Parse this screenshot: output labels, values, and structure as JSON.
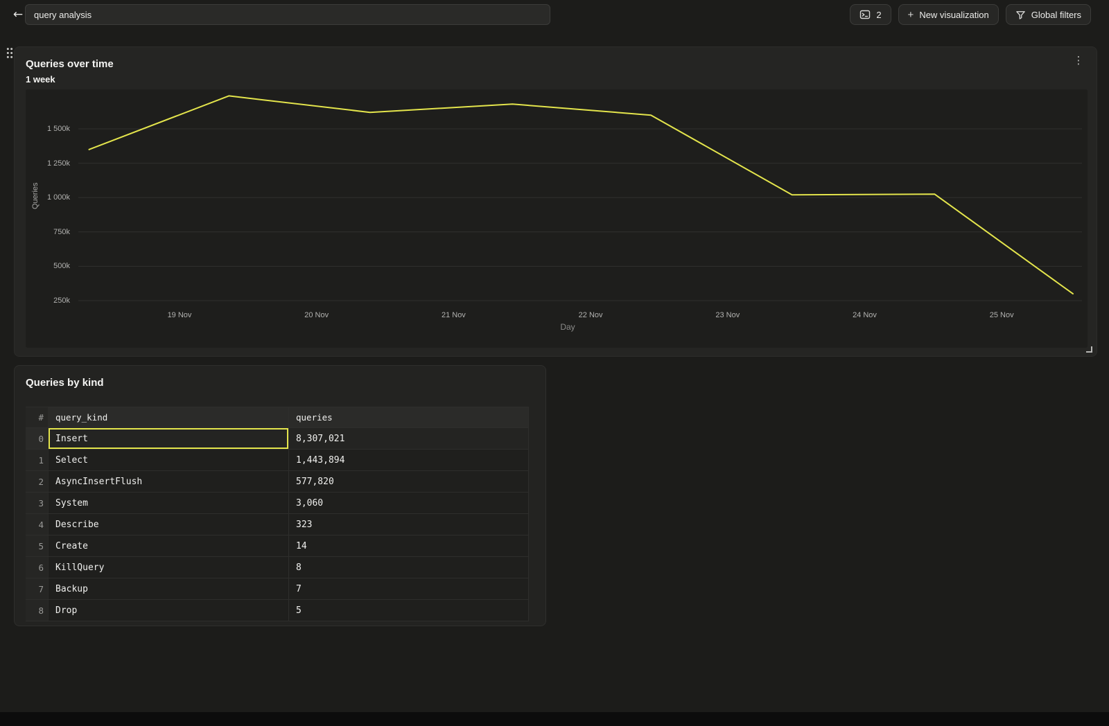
{
  "topbar": {
    "title_value": "query analysis",
    "tab_count_button": {
      "label": "2"
    },
    "new_visualization_button": {
      "plus": "+",
      "label": "New visualization"
    },
    "global_filters_button": {
      "label": "Global filters"
    }
  },
  "chart_panel": {
    "title": "Queries over time",
    "subtitle": "1 week"
  },
  "chart_data": {
    "type": "line",
    "title": "Queries over time",
    "subtitle": "1 week",
    "xlabel": "Day",
    "ylabel": "Queries",
    "legend": "none",
    "grid": "horizontal",
    "x_ticks": [
      {
        "day": 19,
        "label": "19 Nov"
      },
      {
        "day": 20,
        "label": "20 Nov"
      },
      {
        "day": 21,
        "label": "21 Nov"
      },
      {
        "day": 22,
        "label": "22 Nov"
      },
      {
        "day": 23,
        "label": "23 Nov"
      },
      {
        "day": 24,
        "label": "24 Nov"
      },
      {
        "day": 25,
        "label": "25 Nov"
      }
    ],
    "y_ticks": [
      {
        "value_k": 1500,
        "label": "1 500k"
      },
      {
        "value_k": 1250,
        "label": "1 250k"
      },
      {
        "value_k": 1000,
        "label": "1 000k"
      },
      {
        "value_k": 750,
        "label": "750k"
      },
      {
        "value_k": 500,
        "label": "500k"
      },
      {
        "value_k": 250,
        "label": "250k"
      }
    ],
    "ylim_k": [
      0,
      1790
    ],
    "series": [
      {
        "name": "Queries",
        "color": "#e4e54c",
        "points": [
          {
            "day": 18.34,
            "queries_k": 1350
          },
          {
            "day": 19.36,
            "queries_k": 1740
          },
          {
            "day": 20.39,
            "queries_k": 1620
          },
          {
            "day": 21.43,
            "queries_k": 1680
          },
          {
            "day": 22.44,
            "queries_k": 1600
          },
          {
            "day": 23.47,
            "queries_k": 1020
          },
          {
            "day": 24.51,
            "queries_k": 1025
          },
          {
            "day": 25.52,
            "queries_k": 300
          }
        ]
      }
    ]
  },
  "table_panel": {
    "title": "Queries by kind",
    "columns": [
      "#",
      "query_kind",
      "queries"
    ],
    "rows": [
      {
        "index": "0",
        "query_kind": "Insert",
        "queries": "8,307,021",
        "selected": true
      },
      {
        "index": "1",
        "query_kind": "Select",
        "queries": "1,443,894",
        "selected": false
      },
      {
        "index": "2",
        "query_kind": "AsyncInsertFlush",
        "queries": "577,820",
        "selected": false
      },
      {
        "index": "3",
        "query_kind": "System",
        "queries": "3,060",
        "selected": false
      },
      {
        "index": "4",
        "query_kind": "Describe",
        "queries": "323",
        "selected": false
      },
      {
        "index": "5",
        "query_kind": "Create",
        "queries": "14",
        "selected": false
      },
      {
        "index": "6",
        "query_kind": "KillQuery",
        "queries": "8",
        "selected": false
      },
      {
        "index": "7",
        "query_kind": "Backup",
        "queries": "7",
        "selected": false
      },
      {
        "index": "8",
        "query_kind": "Drop",
        "queries": "5",
        "selected": false
      }
    ]
  },
  "colors": {
    "accent_yellow": "#e4e54c",
    "page_bg": "#1c1c1a",
    "panel_bg": "#252523",
    "plot_bg": "#1e1e1c"
  }
}
